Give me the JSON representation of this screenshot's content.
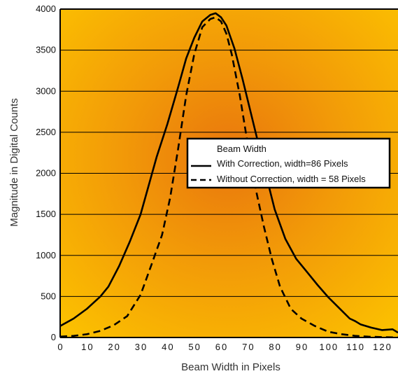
{
  "chart_data": {
    "type": "line",
    "xlabel": "Beam Width in Pixels",
    "ylabel": "Magnitude in Digital Counts",
    "xlim": [
      0,
      126
    ],
    "ylim": [
      0,
      4000
    ],
    "x_ticks": [
      0,
      10,
      20,
      30,
      40,
      50,
      60,
      70,
      80,
      90,
      100,
      110,
      120
    ],
    "x_tick_labels": [
      "0",
      "10",
      "20",
      "30",
      "40",
      "50",
      "60",
      "70",
      "80",
      "90",
      "100",
      "110",
      "120"
    ],
    "y_ticks": [
      0,
      500,
      1000,
      1500,
      2000,
      2500,
      3000,
      3500,
      4000
    ],
    "y_tick_labels": [
      "0",
      "500",
      "1000",
      "1500",
      "2000",
      "2500",
      "3000",
      "3500",
      "4000"
    ],
    "grid": "horizontal",
    "legend": {
      "title": "Beam Width",
      "placement": "center-right"
    },
    "series": [
      {
        "name": "With Correction, width=86 Pixels",
        "style": "solid",
        "x": [
          0,
          5,
          10,
          15,
          18,
          22,
          26,
          30,
          33,
          36,
          40,
          44,
          47,
          50,
          53,
          56,
          58,
          60,
          62,
          65,
          68,
          71,
          74,
          77,
          80,
          84,
          88,
          92,
          96,
          100,
          104,
          108,
          110,
          112,
          116,
          120,
          124,
          126
        ],
        "y": [
          140,
          230,
          350,
          500,
          620,
          870,
          1170,
          1500,
          1850,
          2200,
          2600,
          3050,
          3400,
          3650,
          3850,
          3930,
          3950,
          3900,
          3800,
          3520,
          3150,
          2750,
          2350,
          1950,
          1560,
          1200,
          960,
          800,
          640,
          490,
          360,
          230,
          200,
          160,
          120,
          90,
          100,
          60
        ]
      },
      {
        "name": "Without Correction, width = 58 Pixels",
        "style": "dashed",
        "x": [
          0,
          5,
          10,
          15,
          20,
          25,
          30,
          34,
          38,
          41,
          44,
          47,
          50,
          53,
          56,
          58,
          60,
          62,
          64,
          67,
          70,
          73,
          76,
          79,
          82,
          86,
          90,
          95,
          100,
          105,
          110,
          115,
          120,
          126
        ],
        "y": [
          10,
          20,
          40,
          80,
          150,
          260,
          520,
          880,
          1250,
          1700,
          2300,
          2950,
          3450,
          3780,
          3880,
          3900,
          3850,
          3700,
          3450,
          2950,
          2350,
          1800,
          1350,
          950,
          620,
          350,
          230,
          140,
          70,
          40,
          20,
          10,
          5,
          0
        ]
      }
    ]
  },
  "colors": {
    "background_center": "#e9760d",
    "background_edge": "#fcc100",
    "line": "#000000",
    "legend_bg": "#ffffff"
  }
}
